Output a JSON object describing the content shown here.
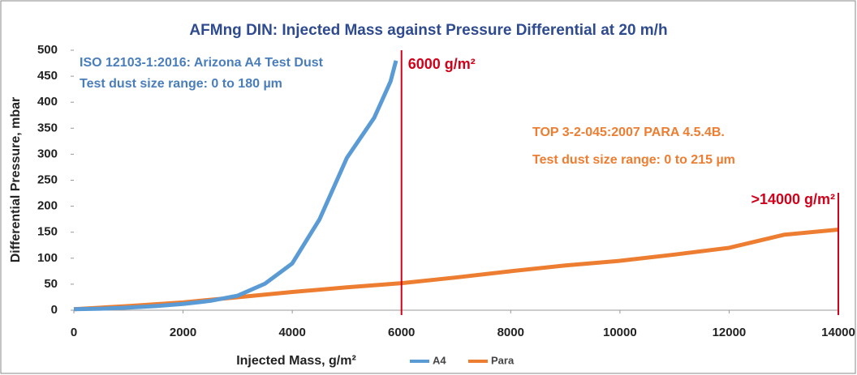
{
  "chart_data": {
    "type": "line",
    "title": "AFMng DIN: Injected Mass against Pressure Differential at 20 m/h",
    "xlabel": "Injected Mass, g/m²",
    "ylabel": "Differential Pressure, mbar",
    "xlim": [
      0,
      14000
    ],
    "xticks": [
      0,
      2000,
      4000,
      6000,
      8000,
      10000,
      12000,
      14000
    ],
    "ylim": [
      0,
      500
    ],
    "yticks": [
      0,
      50,
      100,
      150,
      200,
      250,
      300,
      350,
      400,
      450,
      500
    ],
    "series": [
      {
        "name": "A4",
        "color": "#5b9bd5",
        "x": [
          0,
          500,
          1000,
          1500,
          2000,
          2500,
          3000,
          3500,
          4000,
          4500,
          5000,
          5500,
          5800,
          5900
        ],
        "values": [
          2,
          3,
          5,
          8,
          12,
          18,
          28,
          51,
          90,
          175,
          293,
          370,
          440,
          480
        ]
      },
      {
        "name": "Para",
        "color": "#ed7d31",
        "x": [
          0,
          1000,
          2000,
          3000,
          4000,
          5000,
          6000,
          7000,
          8000,
          9000,
          10000,
          11000,
          12000,
          13000,
          14000
        ],
        "values": [
          2,
          8,
          15,
          25,
          35,
          44,
          52,
          63,
          75,
          86,
          95,
          107,
          120,
          145,
          155
        ]
      }
    ],
    "reference_lines": [
      {
        "x": 6000,
        "label": "6000 g/m²",
        "color": "#d0021b"
      },
      {
        "x": 14000,
        "label": ">14000 g/m²",
        "color": "#d0021b"
      }
    ],
    "annotations": [
      {
        "text": "ISO 12103-1:2016: Arizona A4 Test Dust",
        "color": "#4a7ebb"
      },
      {
        "text": "Test dust size range: 0 to 180 µm",
        "color": "#4a7ebb"
      },
      {
        "text": "TOP 3-2-045:2007 PARA 4.5.4B.",
        "color": "#ed7d31"
      },
      {
        "text": "Test dust size range: 0 to 215 µm",
        "color": "#ed7d31"
      }
    ]
  }
}
